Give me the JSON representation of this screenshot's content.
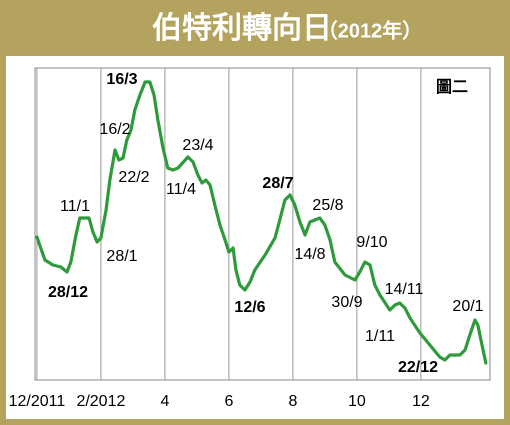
{
  "chart_data": {
    "type": "line",
    "title": "伯特利轉向日",
    "subtitle": "（2012年）",
    "panel_label": "圖二",
    "xlim": [
      -0.06,
      14.16
    ],
    "ylim": [
      0,
      312
    ],
    "xticks": [
      {
        "value": 0,
        "label": "12/2011"
      },
      {
        "value": 2,
        "label": "2/2012"
      },
      4,
      6,
      8,
      10,
      12
    ],
    "grid": true,
    "series": [
      {
        "color": "#2f9a3b",
        "x": [
          0,
          0.25,
          0.5,
          0.75,
          0.94,
          1.06,
          1.22,
          1.34,
          1.63,
          1.75,
          1.88,
          2.0,
          2.16,
          2.28,
          2.44,
          2.56,
          2.69,
          2.81,
          2.94,
          3.06,
          3.22,
          3.38,
          3.53,
          3.66,
          3.78,
          3.94,
          4.09,
          4.25,
          4.41,
          4.72,
          4.88,
          5.03,
          5.16,
          5.28,
          5.41,
          5.56,
          5.72,
          5.88,
          6.0,
          6.13,
          6.22,
          6.34,
          6.5,
          6.66,
          6.81,
          7.13,
          7.44,
          7.59,
          7.75,
          7.91,
          8.06,
          8.22,
          8.38,
          8.53,
          8.84,
          9.0,
          9.16,
          9.31,
          9.63,
          9.94,
          10.09,
          10.25,
          10.41,
          10.56,
          10.72,
          11.03,
          11.19,
          11.34,
          11.5,
          11.66,
          11.97,
          12.28,
          12.59,
          12.75,
          12.91,
          13.22,
          13.38,
          13.53,
          13.69,
          13.78,
          13.91,
          14.03
        ],
        "values": [
          143,
          120,
          115,
          113,
          108,
          118,
          145,
          162,
          162,
          148,
          138,
          142,
          170,
          200,
          230,
          220,
          222,
          240,
          250,
          270,
          285,
          298,
          298,
          285,
          260,
          232,
          212,
          210,
          212,
          223,
          218,
          205,
          197,
          200,
          195,
          175,
          155,
          140,
          128,
          132,
          110,
          95,
          90,
          98,
          110,
          125,
          142,
          160,
          180,
          185,
          175,
          158,
          145,
          158,
          162,
          155,
          140,
          118,
          105,
          100,
          108,
          118,
          115,
          95,
          85,
          70,
          75,
          77,
          72,
          62,
          47,
          35,
          23,
          20,
          25,
          25,
          30,
          45,
          60,
          55,
          35,
          17
        ]
      }
    ],
    "annotations": [
      {
        "text": "16/3",
        "bold": true
      },
      {
        "text": "16/2",
        "bold": false
      },
      {
        "text": "22/2",
        "bold": false
      },
      {
        "text": "11/1",
        "bold": false
      },
      {
        "text": "28/1",
        "bold": false
      },
      {
        "text": "28/12",
        "bold": true
      },
      {
        "text": "23/4",
        "bold": false
      },
      {
        "text": "11/4",
        "bold": false
      },
      {
        "text": "28/7",
        "bold": true
      },
      {
        "text": "25/8",
        "bold": false
      },
      {
        "text": "14/8",
        "bold": false
      },
      {
        "text": "12/6",
        "bold": true
      },
      {
        "text": "9/10",
        "bold": false
      },
      {
        "text": "30/9",
        "bold": false
      },
      {
        "text": "14/11",
        "bold": false
      },
      {
        "text": "1/11",
        "bold": false
      },
      {
        "text": "22/12",
        "bold": true
      },
      {
        "text": "20/1",
        "bold": false
      }
    ]
  }
}
